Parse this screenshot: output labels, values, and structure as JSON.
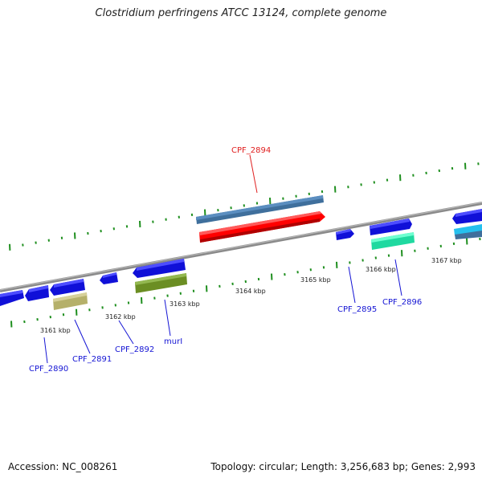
{
  "title": "Clostridium perfringens ATCC 13124, complete genome",
  "footer": {
    "accession": "Accession: NC_008261",
    "summary": "Topology: circular; Length: 3,256,683 bp; Genes: 2,993"
  },
  "colors": {
    "backbone": "#8a8a8a",
    "tick": "#1f8f1f",
    "cds_blue": "#1414e6",
    "leader_blue": "#1515d4",
    "leader_red": "#e02020"
  },
  "scale_labels": [
    {
      "text": "3161 kbp"
    },
    {
      "text": "3162 kbp"
    },
    {
      "text": "3163 kbp"
    },
    {
      "text": "3164 kbp"
    },
    {
      "text": "3165 kbp"
    },
    {
      "text": "3166 kbp"
    },
    {
      "text": "3167 kbp"
    }
  ],
  "gene_labels": [
    {
      "id": "cpf2894",
      "text": "CPF_2894",
      "color": "red"
    },
    {
      "id": "cpf2890",
      "text": "CPF_2890",
      "color": "blue"
    },
    {
      "id": "cpf2891",
      "text": "CPF_2891",
      "color": "blue"
    },
    {
      "id": "cpf2892",
      "text": "CPF_2892",
      "color": "blue"
    },
    {
      "id": "muri",
      "text": "murI",
      "color": "blue"
    },
    {
      "id": "cpf2895",
      "text": "CPF_2895",
      "color": "blue"
    },
    {
      "id": "cpf2896",
      "text": "CPF_2896",
      "color": "blue"
    }
  ]
}
